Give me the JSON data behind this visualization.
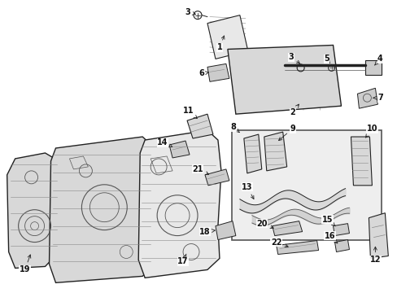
{
  "fig_width": 4.89,
  "fig_height": 3.6,
  "dpi": 100,
  "bg_color": "#ffffff",
  "lc": "#222222",
  "lc_light": "#888888",
  "lc_mid": "#555555",
  "box_fill": "#eeeeee",
  "part_fill": "#e8e8e8",
  "part_fill2": "#d8d8d8",
  "part_fill3": "#cccccc"
}
